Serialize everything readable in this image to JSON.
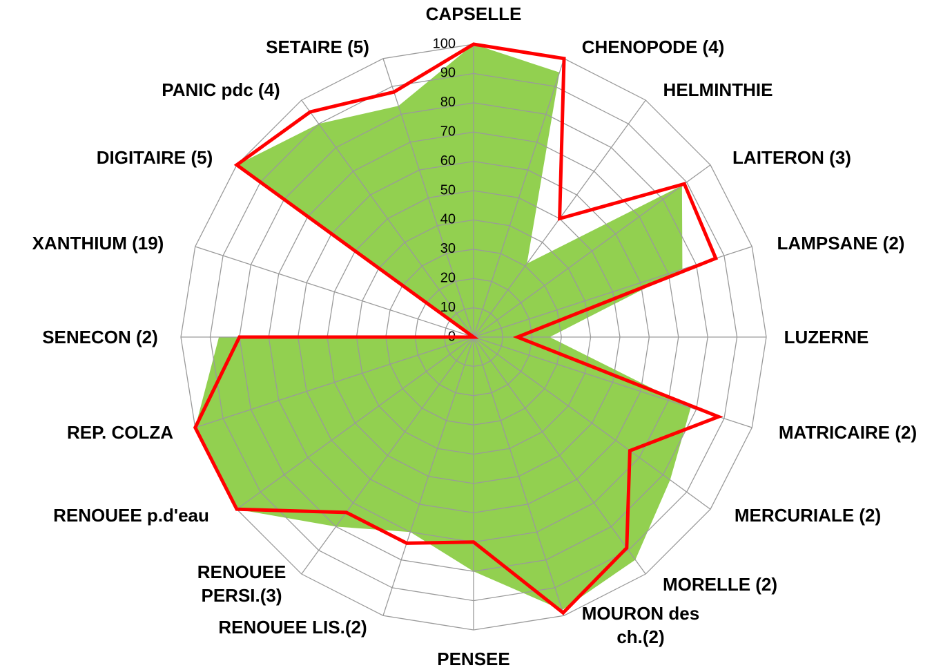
{
  "chart_data": {
    "type": "radar",
    "categories": [
      "CAPSELLE",
      "CHENOPODE (4)",
      "HELMINTHIE",
      "LAITERON (3)",
      "LAMPSANE (2)",
      "LUZERNE",
      "MATRICAIRE (2)",
      "MERCURIALE (2)",
      "MORELLE (2)",
      "MOURON des ch.(2)",
      "PENSEE",
      "RENOUEE LIS.(2)",
      "RENOUEE PERSI.(3)",
      "RENOUEE p.d'eau",
      "REP. COLZA",
      "SENECON (2)",
      "XANTHIUM (19)",
      "DIGITAIRE (5)",
      "PANIC pdc (4)",
      "SETAIRE (5)"
    ],
    "series": [
      {
        "color": "#92d050",
        "fill": true,
        "values": [
          100,
          95,
          31,
          88,
          75,
          26,
          78,
          83,
          94,
          98,
          80,
          70,
          80,
          100,
          100,
          87,
          0,
          100,
          90,
          83
        ]
      },
      {
        "color": "#ff0000",
        "fill": false,
        "values": [
          100,
          100,
          50,
          89,
          87,
          15,
          88,
          66,
          89,
          99,
          70,
          74,
          74,
          100,
          100,
          80,
          0,
          100,
          95,
          88
        ]
      }
    ],
    "ylim": [
      0,
      100
    ],
    "yticks": [
      0,
      10,
      20,
      30,
      40,
      50,
      60,
      70,
      80,
      90,
      100
    ],
    "grid": true
  }
}
